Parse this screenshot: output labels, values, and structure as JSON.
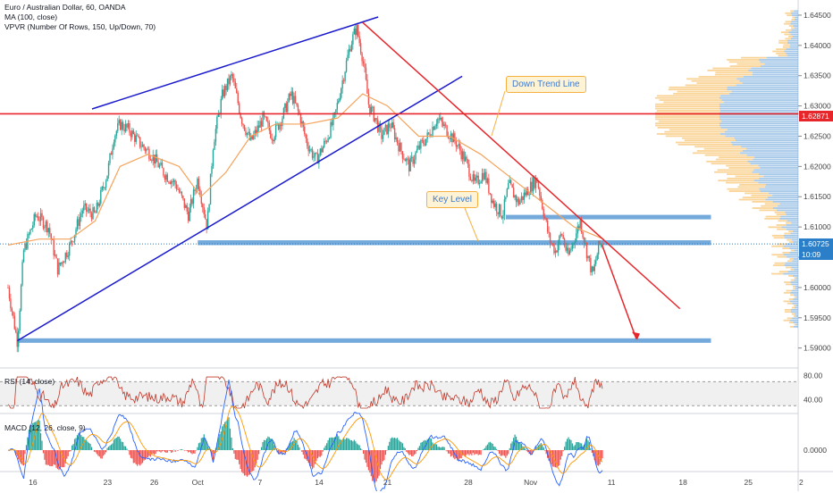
{
  "header": {
    "title": "Euro / Australian Dollar, 60, OANDA",
    "ma": "MA (100, close)",
    "vpvr": "VPVR (Number Of Rows, 150, Up/Down, 70)"
  },
  "annotations": {
    "down_trend": "Down Trend Line",
    "key_level": "Key Level"
  },
  "price_badges": {
    "resistance": "1.62871",
    "current": "1.60725",
    "countdown": "10:09"
  },
  "indicators": {
    "rsi_label": "RSI (14, close)",
    "rsi_ticks": [
      "80.00",
      "40.00"
    ],
    "macd_label": "MACD (12, 26, close, 9)",
    "macd_tick": "0.0000"
  },
  "colors": {
    "candle_up": "#26a69a",
    "candle_down": "#ef5350",
    "ma": "#f5a35c",
    "trend_blue": "#1a1acd",
    "trend_red": "#e6262b",
    "level_blue": "#5b9bd5",
    "vp_up": "#5b9bd5",
    "vp_down": "#f5b041",
    "rsi": "#c0392b",
    "macd": "#2962ff",
    "signal": "#ff9800"
  },
  "chart_data": [
    {
      "type": "candlestick",
      "title": "Euro / Australian Dollar, 60, OANDA",
      "y_ticks": [
        "1.64500",
        "1.64000",
        "1.63500",
        "1.63000",
        "1.62500",
        "1.62000",
        "1.61500",
        "1.61000",
        "1.60500",
        "1.60000",
        "1.59500",
        "1.59000"
      ],
      "x_ticks": [
        "16",
        "23",
        "26",
        "Oct",
        "7",
        "14",
        "21",
        "28",
        "Nov",
        "11",
        "18",
        "25",
        "2"
      ],
      "ylim": [
        1.587,
        1.6475
      ],
      "close_path": [
        [
          0,
          1.6
        ],
        [
          3,
          1.591
        ],
        [
          5,
          1.606
        ],
        [
          9,
          1.612
        ],
        [
          13,
          1.61
        ],
        [
          16,
          1.603
        ],
        [
          20,
          1.607
        ],
        [
          24,
          1.613
        ],
        [
          28,
          1.612
        ],
        [
          32,
          1.619
        ],
        [
          34,
          1.625
        ],
        [
          36,
          1.627
        ],
        [
          39,
          1.626
        ],
        [
          42,
          1.624
        ],
        [
          46,
          1.622
        ],
        [
          50,
          1.619
        ],
        [
          54,
          1.617
        ],
        [
          58,
          1.612
        ],
        [
          61,
          1.618
        ],
        [
          64,
          1.61
        ],
        [
          66,
          1.624
        ],
        [
          69,
          1.632
        ],
        [
          72,
          1.635
        ],
        [
          75,
          1.628
        ],
        [
          78,
          1.624
        ],
        [
          82,
          1.628
        ],
        [
          85,
          1.625
        ],
        [
          88,
          1.628
        ],
        [
          91,
          1.632
        ],
        [
          94,
          1.628
        ],
        [
          96,
          1.624
        ],
        [
          99,
          1.621
        ],
        [
          102,
          1.624
        ],
        [
          105,
          1.628
        ],
        [
          107,
          1.633
        ],
        [
          110,
          1.64
        ],
        [
          112,
          1.643
        ],
        [
          114,
          1.638
        ],
        [
          116,
          1.63
        ],
        [
          118,
          1.628
        ],
        [
          120,
          1.625
        ],
        [
          123,
          1.627
        ],
        [
          126,
          1.623
        ],
        [
          129,
          1.62
        ],
        [
          132,
          1.623
        ],
        [
          135,
          1.625
        ],
        [
          138,
          1.628
        ],
        [
          141,
          1.626
        ],
        [
          144,
          1.624
        ],
        [
          147,
          1.621
        ],
        [
          150,
          1.617
        ],
        [
          153,
          1.619
        ],
        [
          156,
          1.614
        ],
        [
          159,
          1.612
        ],
        [
          161,
          1.617
        ],
        [
          164,
          1.614
        ],
        [
          167,
          1.616
        ],
        [
          170,
          1.618
        ],
        [
          172,
          1.613
        ],
        [
          174,
          1.608
        ],
        [
          176,
          1.606
        ],
        [
          178,
          1.609
        ],
        [
          180,
          1.605
        ],
        [
          182,
          1.608
        ],
        [
          184,
          1.611
        ],
        [
          186,
          1.606
        ],
        [
          188,
          1.602
        ],
        [
          190,
          1.607
        ],
        [
          191.5,
          1.6075
        ]
      ],
      "ma100_path": [
        [
          0,
          1.607
        ],
        [
          10,
          1.608
        ],
        [
          20,
          1.608
        ],
        [
          28,
          1.611
        ],
        [
          36,
          1.62
        ],
        [
          45,
          1.622
        ],
        [
          55,
          1.62
        ],
        [
          62,
          1.615
        ],
        [
          70,
          1.619
        ],
        [
          78,
          1.625
        ],
        [
          86,
          1.627
        ],
        [
          96,
          1.627
        ],
        [
          106,
          1.628
        ],
        [
          114,
          1.632
        ],
        [
          122,
          1.63
        ],
        [
          132,
          1.625
        ],
        [
          142,
          1.625
        ],
        [
          152,
          1.622
        ],
        [
          162,
          1.618
        ],
        [
          172,
          1.614
        ],
        [
          182,
          1.61
        ],
        [
          191.5,
          1.608
        ]
      ],
      "drawings": [
        {
          "name": "upper-channel-line",
          "from": [
            27,
            1.6295
          ],
          "to": [
            119,
            1.6447
          ],
          "color": "trend_blue"
        },
        {
          "name": "lower-trend-line",
          "from": [
            3,
            1.5912
          ],
          "to": [
            146,
            1.6349
          ],
          "color": "trend_blue"
        },
        {
          "name": "down-trend-line",
          "from": [
            114,
            1.6438
          ],
          "to": [
            216,
            1.5965
          ],
          "color": "trend_red"
        },
        {
          "name": "projection-arrow",
          "from": [
            191,
            1.607
          ],
          "to": [
            202,
            1.5915
          ],
          "color": "trend_red"
        },
        {
          "name": "resistance-line",
          "from": [
            0,
            1.6287
          ],
          "to": [
            250,
            1.6287
          ],
          "color": "trend_red"
        }
      ],
      "zones": [
        {
          "name": "key-level-zone",
          "x": [
            61,
            226
          ],
          "y": [
            1.607,
            1.6078
          ]
        },
        {
          "name": "upper-zone",
          "x": [
            160,
            226
          ],
          "y": [
            1.6113,
            1.612
          ]
        },
        {
          "name": "bottom-zone",
          "x": [
            3,
            226
          ],
          "y": [
            1.5909,
            1.5916
          ]
        }
      ],
      "volume_profile": {
        "peak_price": 1.6287,
        "max_width": 160
      }
    },
    {
      "type": "line",
      "title": "RSI (14, close)",
      "ylim": [
        20,
        90
      ],
      "bands": [
        70,
        30
      ]
    },
    {
      "type": "bar",
      "title": "MACD (12, 26, close, 9)",
      "ylim": [
        -0.008,
        0.008
      ]
    }
  ]
}
